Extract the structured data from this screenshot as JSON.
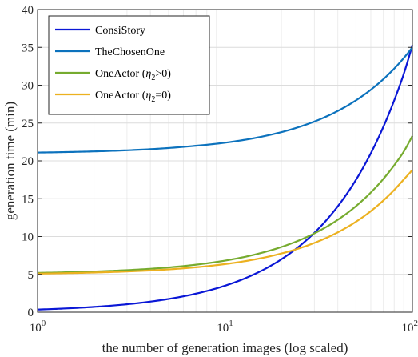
{
  "chart_data": {
    "type": "line",
    "title": "",
    "xlabel": "the number of generation images (log scaled)",
    "ylabel": "generation time (min)",
    "x_scale": "log",
    "xlim": [
      1,
      100
    ],
    "ylim": [
      0,
      40
    ],
    "x_ticks": [
      1,
      10,
      100
    ],
    "x_tick_labels": [
      {
        "base": "10",
        "exp": "0"
      },
      {
        "base": "10",
        "exp": "1"
      },
      {
        "base": "10",
        "exp": "2"
      }
    ],
    "y_ticks": [
      0,
      5,
      10,
      15,
      20,
      25,
      30,
      35,
      40
    ],
    "y_tick_labels": [
      "0",
      "5",
      "10",
      "15",
      "20",
      "25",
      "30",
      "35",
      "40"
    ],
    "grid": true,
    "legend_position": "top-left",
    "series": [
      {
        "name": "ConsiStory",
        "legend": [
          {
            "t": "ConsiStory"
          }
        ],
        "color": "#0a17d6",
        "x": [
          1,
          2,
          3,
          5,
          7,
          10,
          15,
          20,
          25,
          30,
          40,
          50,
          60,
          70,
          80,
          90,
          100
        ],
        "y": [
          0.35,
          0.7,
          1.05,
          1.75,
          2.45,
          3.5,
          5.25,
          7.0,
          8.75,
          10.5,
          14.0,
          17.5,
          21.0,
          24.5,
          28.0,
          31.5,
          35.3
        ]
      },
      {
        "name": "TheChosenOne",
        "legend": [
          {
            "t": "TheChosenOne"
          }
        ],
        "color": "#0c72bd",
        "x": [
          1,
          2,
          3,
          5,
          7,
          10,
          15,
          20,
          25,
          30,
          40,
          50,
          60,
          70,
          80,
          90,
          100
        ],
        "y": [
          21.1,
          21.25,
          21.4,
          21.7,
          22.0,
          22.4,
          23.1,
          23.8,
          24.5,
          25.2,
          26.6,
          28.0,
          29.4,
          30.8,
          32.2,
          33.6,
          35.0
        ]
      },
      {
        "name": "OneActor (η2>0)",
        "legend": [
          {
            "t": "OneActor ("
          },
          {
            "t": "η",
            "style": "italic"
          },
          {
            "t": "2",
            "style": "sub"
          },
          {
            "t": ">0)"
          }
        ],
        "color": "#76ab2f",
        "x": [
          1,
          2,
          3,
          5,
          7,
          10,
          15,
          20,
          25,
          30,
          40,
          50,
          60,
          70,
          80,
          90,
          100
        ],
        "y": [
          5.2,
          5.38,
          5.56,
          5.92,
          6.28,
          6.82,
          7.72,
          8.62,
          9.52,
          10.42,
          12.22,
          14.02,
          15.82,
          17.62,
          19.42,
          21.22,
          23.3
        ]
      },
      {
        "name": "OneActor (η2=0)",
        "legend": [
          {
            "t": "OneActor ("
          },
          {
            "t": "η",
            "style": "italic"
          },
          {
            "t": "2",
            "style": "sub"
          },
          {
            "t": "=0)"
          }
        ],
        "color": "#ecb120",
        "x": [
          1,
          2,
          3,
          5,
          7,
          10,
          15,
          20,
          25,
          30,
          40,
          50,
          60,
          70,
          80,
          90,
          100
        ],
        "y": [
          5.1,
          5.24,
          5.38,
          5.66,
          5.94,
          6.36,
          7.06,
          7.76,
          8.46,
          9.16,
          10.56,
          11.96,
          13.36,
          14.76,
          16.16,
          17.56,
          18.8
        ]
      }
    ]
  }
}
